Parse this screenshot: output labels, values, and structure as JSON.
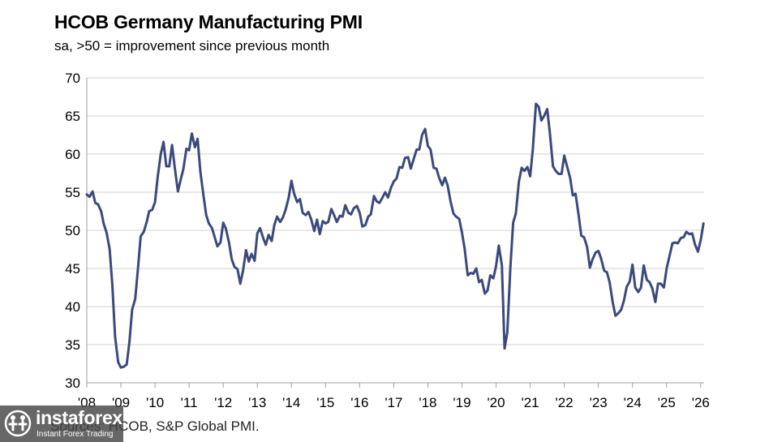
{
  "chart_data": {
    "type": "line",
    "title": "HCOB Germany Manufacturing PMI",
    "subtitle": "sa, >50 = improvement since previous month",
    "xlabel": "",
    "ylabel": "",
    "ylim": [
      30,
      70
    ],
    "y_ticks": [
      30,
      35,
      40,
      45,
      50,
      55,
      60,
      65,
      70
    ],
    "x_ticks": [
      "'08",
      "'09",
      "'10",
      "'11",
      "'12",
      "'13",
      "'14",
      "'15",
      "'16",
      "'17",
      "'18",
      "'19",
      "'20",
      "'21",
      "'22",
      "'23",
      "'24",
      "'25",
      "'26"
    ],
    "x_range": [
      2008.0,
      2026.1
    ],
    "grid": "horizontal",
    "colors": {
      "line": "#3b4a7c",
      "grid": "#d0d0d0",
      "axis": "#a0a0a0"
    },
    "series": [
      {
        "name": "HCOB Germany Manufacturing PMI",
        "points": [
          [
            2008.0,
            54.7
          ],
          [
            2008.08,
            54.4
          ],
          [
            2008.17,
            55.1
          ],
          [
            2008.25,
            53.6
          ],
          [
            2008.33,
            53.4
          ],
          [
            2008.42,
            52.5
          ],
          [
            2008.5,
            50.8
          ],
          [
            2008.58,
            49.7
          ],
          [
            2008.67,
            47.5
          ],
          [
            2008.75,
            42.8
          ],
          [
            2008.83,
            36.0
          ],
          [
            2008.92,
            32.7
          ],
          [
            2009.0,
            32.0
          ],
          [
            2009.08,
            32.1
          ],
          [
            2009.17,
            32.4
          ],
          [
            2009.25,
            35.4
          ],
          [
            2009.33,
            39.6
          ],
          [
            2009.42,
            41.0
          ],
          [
            2009.5,
            45.0
          ],
          [
            2009.58,
            49.2
          ],
          [
            2009.67,
            49.8
          ],
          [
            2009.75,
            51.0
          ],
          [
            2009.83,
            52.5
          ],
          [
            2009.92,
            52.7
          ],
          [
            2010.0,
            53.7
          ],
          [
            2010.08,
            57.1
          ],
          [
            2010.17,
            60.0
          ],
          [
            2010.25,
            61.6
          ],
          [
            2010.33,
            58.4
          ],
          [
            2010.42,
            58.4
          ],
          [
            2010.5,
            61.2
          ],
          [
            2010.58,
            58.2
          ],
          [
            2010.67,
            55.1
          ],
          [
            2010.75,
            56.6
          ],
          [
            2010.83,
            58.0
          ],
          [
            2010.92,
            60.7
          ],
          [
            2011.0,
            60.5
          ],
          [
            2011.08,
            62.7
          ],
          [
            2011.17,
            60.9
          ],
          [
            2011.25,
            62.0
          ],
          [
            2011.33,
            57.7
          ],
          [
            2011.42,
            54.6
          ],
          [
            2011.5,
            52.0
          ],
          [
            2011.58,
            50.9
          ],
          [
            2011.67,
            50.3
          ],
          [
            2011.75,
            49.1
          ],
          [
            2011.83,
            47.9
          ],
          [
            2011.92,
            48.4
          ],
          [
            2012.0,
            51.0
          ],
          [
            2012.08,
            50.2
          ],
          [
            2012.17,
            48.4
          ],
          [
            2012.25,
            46.2
          ],
          [
            2012.33,
            45.2
          ],
          [
            2012.42,
            44.9
          ],
          [
            2012.5,
            43.0
          ],
          [
            2012.58,
            44.7
          ],
          [
            2012.67,
            47.4
          ],
          [
            2012.75,
            45.9
          ],
          [
            2012.83,
            46.9
          ],
          [
            2012.92,
            46.0
          ],
          [
            2013.0,
            49.6
          ],
          [
            2013.08,
            50.3
          ],
          [
            2013.17,
            49.0
          ],
          [
            2013.25,
            48.1
          ],
          [
            2013.33,
            49.4
          ],
          [
            2013.42,
            48.6
          ],
          [
            2013.5,
            50.7
          ],
          [
            2013.58,
            51.8
          ],
          [
            2013.67,
            51.1
          ],
          [
            2013.75,
            51.7
          ],
          [
            2013.83,
            52.7
          ],
          [
            2013.92,
            54.3
          ],
          [
            2014.0,
            56.5
          ],
          [
            2014.08,
            54.8
          ],
          [
            2014.17,
            53.7
          ],
          [
            2014.25,
            54.1
          ],
          [
            2014.33,
            52.3
          ],
          [
            2014.42,
            52.0
          ],
          [
            2014.5,
            52.4
          ],
          [
            2014.58,
            51.4
          ],
          [
            2014.67,
            49.9
          ],
          [
            2014.75,
            51.4
          ],
          [
            2014.83,
            49.5
          ],
          [
            2014.92,
            51.2
          ],
          [
            2015.0,
            50.9
          ],
          [
            2015.08,
            51.1
          ],
          [
            2015.17,
            52.8
          ],
          [
            2015.25,
            52.0
          ],
          [
            2015.33,
            51.1
          ],
          [
            2015.42,
            51.9
          ],
          [
            2015.5,
            51.8
          ],
          [
            2015.58,
            53.3
          ],
          [
            2015.67,
            52.3
          ],
          [
            2015.75,
            52.1
          ],
          [
            2015.83,
            52.9
          ],
          [
            2015.92,
            53.2
          ],
          [
            2016.0,
            52.3
          ],
          [
            2016.08,
            50.5
          ],
          [
            2016.17,
            50.7
          ],
          [
            2016.25,
            51.8
          ],
          [
            2016.33,
            52.1
          ],
          [
            2016.42,
            54.5
          ],
          [
            2016.5,
            53.8
          ],
          [
            2016.58,
            53.6
          ],
          [
            2016.67,
            54.3
          ],
          [
            2016.75,
            55.0
          ],
          [
            2016.83,
            54.3
          ],
          [
            2016.92,
            55.6
          ],
          [
            2017.0,
            56.4
          ],
          [
            2017.08,
            56.8
          ],
          [
            2017.17,
            58.3
          ],
          [
            2017.25,
            58.2
          ],
          [
            2017.33,
            59.5
          ],
          [
            2017.42,
            59.6
          ],
          [
            2017.5,
            58.1
          ],
          [
            2017.58,
            59.3
          ],
          [
            2017.67,
            60.6
          ],
          [
            2017.75,
            60.6
          ],
          [
            2017.83,
            62.5
          ],
          [
            2017.92,
            63.3
          ],
          [
            2018.0,
            61.1
          ],
          [
            2018.08,
            60.6
          ],
          [
            2018.17,
            58.2
          ],
          [
            2018.25,
            58.1
          ],
          [
            2018.33,
            56.9
          ],
          [
            2018.42,
            55.9
          ],
          [
            2018.5,
            56.9
          ],
          [
            2018.58,
            55.9
          ],
          [
            2018.67,
            53.7
          ],
          [
            2018.75,
            52.2
          ],
          [
            2018.83,
            51.8
          ],
          [
            2018.92,
            51.5
          ],
          [
            2019.0,
            49.7
          ],
          [
            2019.08,
            47.6
          ],
          [
            2019.17,
            44.1
          ],
          [
            2019.25,
            44.4
          ],
          [
            2019.33,
            44.3
          ],
          [
            2019.42,
            45.0
          ],
          [
            2019.5,
            43.2
          ],
          [
            2019.58,
            43.5
          ],
          [
            2019.67,
            41.7
          ],
          [
            2019.75,
            42.1
          ],
          [
            2019.83,
            44.1
          ],
          [
            2019.92,
            43.7
          ],
          [
            2020.0,
            45.3
          ],
          [
            2020.08,
            48.0
          ],
          [
            2020.17,
            45.4
          ],
          [
            2020.25,
            34.5
          ],
          [
            2020.33,
            36.6
          ],
          [
            2020.42,
            45.2
          ],
          [
            2020.5,
            51.0
          ],
          [
            2020.58,
            52.2
          ],
          [
            2020.67,
            56.4
          ],
          [
            2020.75,
            58.2
          ],
          [
            2020.83,
            57.8
          ],
          [
            2020.92,
            58.3
          ],
          [
            2021.0,
            57.1
          ],
          [
            2021.08,
            60.7
          ],
          [
            2021.17,
            66.6
          ],
          [
            2021.25,
            66.2
          ],
          [
            2021.33,
            64.4
          ],
          [
            2021.42,
            65.1
          ],
          [
            2021.5,
            65.9
          ],
          [
            2021.58,
            62.6
          ],
          [
            2021.67,
            58.4
          ],
          [
            2021.75,
            57.8
          ],
          [
            2021.83,
            57.4
          ],
          [
            2021.92,
            57.4
          ],
          [
            2022.0,
            59.8
          ],
          [
            2022.08,
            58.4
          ],
          [
            2022.17,
            56.9
          ],
          [
            2022.25,
            54.6
          ],
          [
            2022.33,
            54.8
          ],
          [
            2022.42,
            52.0
          ],
          [
            2022.5,
            49.3
          ],
          [
            2022.58,
            49.1
          ],
          [
            2022.67,
            47.8
          ],
          [
            2022.75,
            45.1
          ],
          [
            2022.83,
            46.2
          ],
          [
            2022.92,
            47.1
          ],
          [
            2023.0,
            47.3
          ],
          [
            2023.08,
            46.3
          ],
          [
            2023.17,
            44.7
          ],
          [
            2023.25,
            44.5
          ],
          [
            2023.33,
            43.2
          ],
          [
            2023.42,
            40.6
          ],
          [
            2023.5,
            38.8
          ],
          [
            2023.58,
            39.1
          ],
          [
            2023.67,
            39.6
          ],
          [
            2023.75,
            40.8
          ],
          [
            2023.83,
            42.6
          ],
          [
            2023.92,
            43.3
          ],
          [
            2024.0,
            45.5
          ],
          [
            2024.08,
            42.5
          ],
          [
            2024.17,
            41.9
          ],
          [
            2024.25,
            42.5
          ],
          [
            2024.33,
            45.4
          ],
          [
            2024.42,
            43.5
          ],
          [
            2024.5,
            43.2
          ],
          [
            2024.58,
            42.4
          ],
          [
            2024.67,
            40.6
          ],
          [
            2024.75,
            43.0
          ],
          [
            2024.83,
            43.0
          ],
          [
            2024.92,
            42.5
          ],
          [
            2025.0,
            45.0
          ],
          [
            2025.08,
            46.5
          ],
          [
            2025.17,
            48.3
          ],
          [
            2025.25,
            48.4
          ],
          [
            2025.33,
            48.3
          ],
          [
            2025.42,
            49.0
          ],
          [
            2025.5,
            49.1
          ],
          [
            2025.58,
            49.8
          ],
          [
            2025.67,
            49.5
          ],
          [
            2025.75,
            49.6
          ],
          [
            2025.83,
            48.2
          ],
          [
            2025.92,
            47.2
          ],
          [
            2026.0,
            48.7
          ],
          [
            2026.08,
            50.9
          ]
        ]
      }
    ],
    "source": "Sources: HCOB, S&P Global PMI."
  },
  "watermark": {
    "name": "instaforex",
    "tagline": "Instant Forex Trading"
  }
}
